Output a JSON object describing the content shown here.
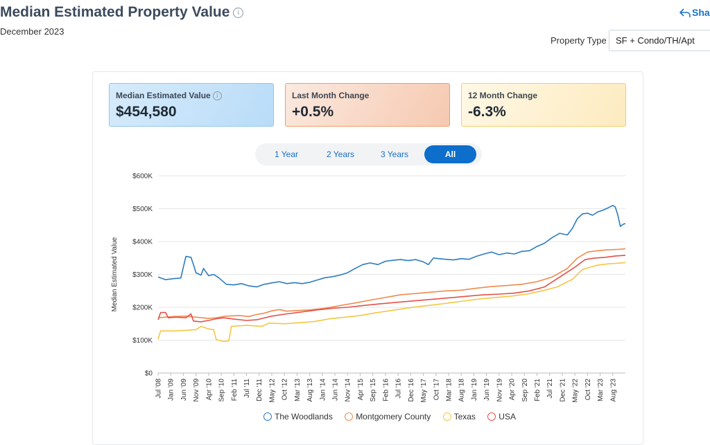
{
  "header": {
    "title": "Median Estimated Property Value",
    "date": "December 2023",
    "share_label": "Share",
    "property_type_label": "Property Type",
    "property_type_value": "SF + Condo/TH/Apt"
  },
  "kpis": [
    {
      "label": "Median Estimated Value",
      "value": "$454,580"
    },
    {
      "label": "Last Month Change",
      "value": "+0.5%"
    },
    {
      "label": "12 Month Change",
      "value": "-6.3%"
    }
  ],
  "tabs": [
    {
      "label": "1 Year",
      "active": false
    },
    {
      "label": "2 Years",
      "active": false
    },
    {
      "label": "3 Years",
      "active": false
    },
    {
      "label": "All",
      "active": true
    }
  ],
  "chart_data": {
    "type": "line",
    "ylabel": "Median Estimated Value",
    "ylim": [
      0,
      600000
    ],
    "yticks": [
      0,
      100000,
      200000,
      300000,
      400000,
      500000,
      600000
    ],
    "ytick_labels": [
      "$0",
      "$100K",
      "$200K",
      "$300K",
      "$400K",
      "$500K",
      "$600K"
    ],
    "x_start": "2008-07",
    "x_end": "2023-12",
    "xtick_labels": [
      "Jul '08",
      "Jan '09",
      "Jun '09",
      "Nov '09",
      "Apr '10",
      "Sep '10",
      "Feb '11",
      "Jul '11",
      "Dec '11",
      "May '12",
      "Oct '12",
      "Mar '13",
      "Aug '13",
      "Jan '14",
      "Jun '14",
      "Nov '14",
      "Apr '15",
      "Sep '15",
      "Feb '16",
      "Jul '16",
      "Dec '16",
      "May '17",
      "Oct '17",
      "Mar '18",
      "Aug '18",
      "Jan '19",
      "Jun '19",
      "Nov '19",
      "Apr '20",
      "Sep '20",
      "Feb '21",
      "Jul '21",
      "Dec '21",
      "May '22",
      "Oct '22",
      "Mar '23",
      "Aug '23"
    ],
    "series": [
      {
        "name": "The Woodlands",
        "color": "#2a7bc0",
        "points": [
          [
            "2008-07",
            292000
          ],
          [
            "2008-10",
            284000
          ],
          [
            "2009-01",
            287000
          ],
          [
            "2009-04",
            289000
          ],
          [
            "2009-06",
            355000
          ],
          [
            "2009-08",
            352000
          ],
          [
            "2009-09",
            330000
          ],
          [
            "2009-10",
            305000
          ],
          [
            "2009-12",
            298000
          ],
          [
            "2010-01",
            318000
          ],
          [
            "2010-03",
            296000
          ],
          [
            "2010-05",
            300000
          ],
          [
            "2010-07",
            290000
          ],
          [
            "2010-10",
            270000
          ],
          [
            "2011-01",
            268000
          ],
          [
            "2011-04",
            272000
          ],
          [
            "2011-07",
            265000
          ],
          [
            "2011-10",
            262000
          ],
          [
            "2012-01",
            270000
          ],
          [
            "2012-04",
            274000
          ],
          [
            "2012-07",
            278000
          ],
          [
            "2012-10",
            272000
          ],
          [
            "2013-01",
            275000
          ],
          [
            "2013-04",
            272000
          ],
          [
            "2013-07",
            276000
          ],
          [
            "2013-10",
            283000
          ],
          [
            "2014-01",
            290000
          ],
          [
            "2014-04",
            293000
          ],
          [
            "2014-07",
            298000
          ],
          [
            "2014-10",
            305000
          ],
          [
            "2015-01",
            318000
          ],
          [
            "2015-04",
            330000
          ],
          [
            "2015-07",
            335000
          ],
          [
            "2015-10",
            330000
          ],
          [
            "2016-01",
            340000
          ],
          [
            "2016-04",
            343000
          ],
          [
            "2016-07",
            345000
          ],
          [
            "2016-10",
            342000
          ],
          [
            "2017-01",
            345000
          ],
          [
            "2017-04",
            338000
          ],
          [
            "2017-06",
            330000
          ],
          [
            "2017-08",
            350000
          ],
          [
            "2017-10",
            348000
          ],
          [
            "2018-01",
            346000
          ],
          [
            "2018-04",
            344000
          ],
          [
            "2018-07",
            348000
          ],
          [
            "2018-10",
            346000
          ],
          [
            "2019-01",
            355000
          ],
          [
            "2019-04",
            362000
          ],
          [
            "2019-07",
            368000
          ],
          [
            "2019-10",
            360000
          ],
          [
            "2020-01",
            365000
          ],
          [
            "2020-04",
            362000
          ],
          [
            "2020-07",
            370000
          ],
          [
            "2020-10",
            372000
          ],
          [
            "2021-01",
            385000
          ],
          [
            "2021-04",
            395000
          ],
          [
            "2021-07",
            412000
          ],
          [
            "2021-10",
            425000
          ],
          [
            "2022-01",
            420000
          ],
          [
            "2022-03",
            440000
          ],
          [
            "2022-05",
            470000
          ],
          [
            "2022-07",
            484000
          ],
          [
            "2022-09",
            486000
          ],
          [
            "2022-11",
            480000
          ],
          [
            "2023-01",
            490000
          ],
          [
            "2023-03",
            495000
          ],
          [
            "2023-05",
            502000
          ],
          [
            "2023-07",
            510000
          ],
          [
            "2023-08",
            505000
          ],
          [
            "2023-09",
            480000
          ],
          [
            "2023-10",
            446000
          ],
          [
            "2023-11",
            452000
          ],
          [
            "2023-12",
            455000
          ]
        ]
      },
      {
        "name": "Montgomery County",
        "color": "#ef8a4c",
        "points": [
          [
            "2008-07",
            168000
          ],
          [
            "2009-01",
            172000
          ],
          [
            "2009-06",
            173000
          ],
          [
            "2009-10",
            170000
          ],
          [
            "2010-03",
            166000
          ],
          [
            "2010-06",
            168000
          ],
          [
            "2010-10",
            173000
          ],
          [
            "2011-03",
            175000
          ],
          [
            "2011-07",
            172000
          ],
          [
            "2011-10",
            178000
          ],
          [
            "2012-01",
            182000
          ],
          [
            "2012-04",
            189000
          ],
          [
            "2012-07",
            193000
          ],
          [
            "2012-10",
            188000
          ],
          [
            "2013-01",
            190000
          ],
          [
            "2013-07",
            192000
          ],
          [
            "2014-01",
            197000
          ],
          [
            "2014-07",
            205000
          ],
          [
            "2015-01",
            213000
          ],
          [
            "2015-07",
            222000
          ],
          [
            "2016-01",
            230000
          ],
          [
            "2016-07",
            238000
          ],
          [
            "2017-01",
            242000
          ],
          [
            "2017-07",
            246000
          ],
          [
            "2018-01",
            250000
          ],
          [
            "2018-07",
            252000
          ],
          [
            "2019-01",
            258000
          ],
          [
            "2019-07",
            263000
          ],
          [
            "2020-01",
            266000
          ],
          [
            "2020-07",
            270000
          ],
          [
            "2021-01",
            278000
          ],
          [
            "2021-07",
            292000
          ],
          [
            "2022-01",
            318000
          ],
          [
            "2022-05",
            350000
          ],
          [
            "2022-09",
            368000
          ],
          [
            "2023-01",
            372000
          ],
          [
            "2023-05",
            375000
          ],
          [
            "2023-09",
            376000
          ],
          [
            "2023-12",
            378000
          ]
        ]
      },
      {
        "name": "Texas",
        "color": "#f5c542",
        "points": [
          [
            "2008-07",
            103000
          ],
          [
            "2008-08",
            128000
          ],
          [
            "2009-01",
            128000
          ],
          [
            "2009-06",
            130000
          ],
          [
            "2009-10",
            132000
          ],
          [
            "2009-12",
            142000
          ],
          [
            "2010-03",
            134000
          ],
          [
            "2010-05",
            132000
          ],
          [
            "2010-06",
            102000
          ],
          [
            "2010-09",
            96000
          ],
          [
            "2010-11",
            98000
          ],
          [
            "2010-12",
            142000
          ],
          [
            "2011-06",
            145000
          ],
          [
            "2011-12",
            142000
          ],
          [
            "2012-03",
            152000
          ],
          [
            "2012-09",
            150000
          ],
          [
            "2013-03",
            153000
          ],
          [
            "2013-09",
            157000
          ],
          [
            "2014-03",
            165000
          ],
          [
            "2014-09",
            170000
          ],
          [
            "2015-03",
            175000
          ],
          [
            "2015-09",
            183000
          ],
          [
            "2016-03",
            190000
          ],
          [
            "2016-09",
            197000
          ],
          [
            "2017-03",
            203000
          ],
          [
            "2017-09",
            208000
          ],
          [
            "2018-03",
            214000
          ],
          [
            "2018-09",
            220000
          ],
          [
            "2019-03",
            226000
          ],
          [
            "2019-09",
            230000
          ],
          [
            "2020-03",
            234000
          ],
          [
            "2020-09",
            240000
          ],
          [
            "2021-03",
            250000
          ],
          [
            "2021-09",
            262000
          ],
          [
            "2022-03",
            285000
          ],
          [
            "2022-07",
            315000
          ],
          [
            "2022-10",
            322000
          ],
          [
            "2023-01",
            328000
          ],
          [
            "2023-05",
            332000
          ],
          [
            "2023-09",
            334000
          ],
          [
            "2023-12",
            336000
          ]
        ]
      },
      {
        "name": "USA",
        "color": "#e2504a",
        "points": [
          [
            "2008-07",
            162000
          ],
          [
            "2008-08",
            184000
          ],
          [
            "2008-10",
            184000
          ],
          [
            "2008-11",
            168000
          ],
          [
            "2009-02",
            170000
          ],
          [
            "2009-06",
            168000
          ],
          [
            "2009-08",
            180000
          ],
          [
            "2009-09",
            158000
          ],
          [
            "2009-12",
            156000
          ],
          [
            "2010-03",
            160000
          ],
          [
            "2010-06",
            165000
          ],
          [
            "2010-09",
            168000
          ],
          [
            "2011-01",
            164000
          ],
          [
            "2011-06",
            160000
          ],
          [
            "2011-10",
            162000
          ],
          [
            "2012-04",
            173000
          ],
          [
            "2012-10",
            180000
          ],
          [
            "2013-04",
            186000
          ],
          [
            "2013-10",
            192000
          ],
          [
            "2014-04",
            197000
          ],
          [
            "2014-10",
            200000
          ],
          [
            "2015-04",
            205000
          ],
          [
            "2015-10",
            210000
          ],
          [
            "2016-04",
            214000
          ],
          [
            "2016-10",
            218000
          ],
          [
            "2017-04",
            222000
          ],
          [
            "2017-10",
            226000
          ],
          [
            "2018-04",
            230000
          ],
          [
            "2018-10",
            234000
          ],
          [
            "2019-04",
            238000
          ],
          [
            "2019-10",
            240000
          ],
          [
            "2020-04",
            243000
          ],
          [
            "2020-10",
            250000
          ],
          [
            "2021-04",
            262000
          ],
          [
            "2021-10",
            292000
          ],
          [
            "2022-04",
            322000
          ],
          [
            "2022-08",
            345000
          ],
          [
            "2022-12",
            350000
          ],
          [
            "2023-04",
            352000
          ],
          [
            "2023-08",
            356000
          ],
          [
            "2023-12",
            358000
          ]
        ]
      }
    ]
  }
}
